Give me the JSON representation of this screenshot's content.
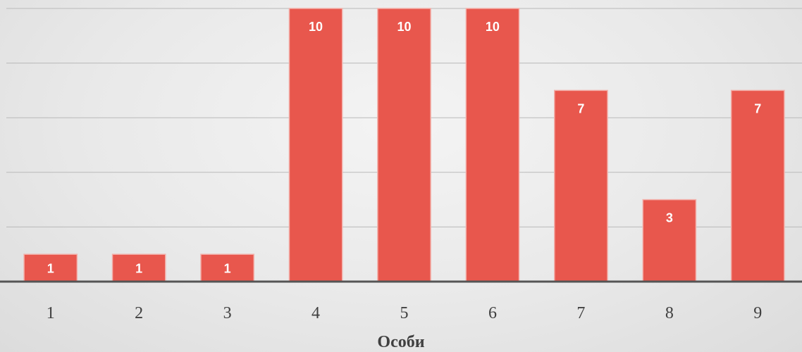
{
  "chart_data": {
    "type": "bar",
    "categories": [
      "1",
      "2",
      "3",
      "4",
      "5",
      "6",
      "7",
      "8",
      "9"
    ],
    "values": [
      1,
      1,
      1,
      10,
      10,
      10,
      7,
      3,
      7
    ],
    "title": "",
    "xlabel": "Особи",
    "ylabel": "",
    "ylim": [
      0,
      10
    ],
    "grid": true,
    "gridlines": [
      0,
      2,
      4,
      6,
      8,
      10
    ],
    "show_y_tick_labels": false,
    "data_labels": true,
    "bar_color": "#e8574d",
    "data_label_color": "#ffffff"
  }
}
